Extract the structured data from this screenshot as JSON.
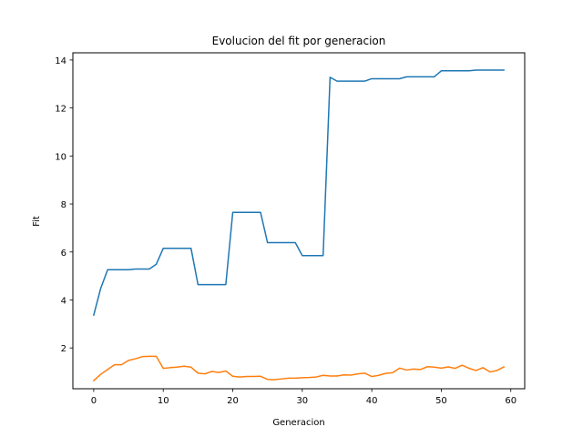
{
  "chart_data": {
    "type": "line",
    "title": "Evolucion del fit por generacion",
    "xlabel": "Generacion",
    "ylabel": "Fit",
    "xlim": [
      -3,
      62.0
    ],
    "ylim": [
      0.3,
      14.3
    ],
    "xticks": [
      0,
      10,
      20,
      30,
      40,
      50,
      60
    ],
    "yticks": [
      2,
      4,
      6,
      8,
      10,
      12,
      14
    ],
    "grid": false,
    "legend": "none",
    "series": [
      {
        "color": "#1f77b4",
        "x": [
          0,
          1,
          2,
          3,
          4,
          5,
          6,
          7,
          8,
          9,
          10,
          11,
          12,
          13,
          14,
          15,
          16,
          17,
          18,
          19,
          20,
          21,
          22,
          23,
          24,
          25,
          26,
          27,
          28,
          29,
          30,
          31,
          32,
          33,
          34,
          35,
          36,
          37,
          38,
          39,
          40,
          41,
          42,
          43,
          44,
          45,
          46,
          47,
          48,
          49,
          50,
          51,
          52,
          53,
          54,
          55,
          56,
          57,
          58,
          59
        ],
        "values": [
          3.37,
          4.48,
          5.26,
          5.26,
          5.26,
          5.26,
          5.29,
          5.29,
          5.29,
          5.49,
          6.15,
          6.15,
          6.15,
          6.15,
          6.15,
          4.64,
          4.64,
          4.64,
          4.64,
          4.64,
          7.65,
          7.65,
          7.65,
          7.65,
          7.65,
          6.39,
          6.39,
          6.39,
          6.39,
          6.39,
          5.85,
          5.85,
          5.85,
          5.85,
          13.28,
          13.12,
          13.12,
          13.12,
          13.12,
          13.12,
          13.22,
          13.22,
          13.22,
          13.22,
          13.22,
          13.3,
          13.3,
          13.3,
          13.3,
          13.3,
          13.55,
          13.55,
          13.55,
          13.55,
          13.55,
          13.58,
          13.58,
          13.58,
          13.58,
          13.58
        ]
      },
      {
        "color": "#ff7f0e",
        "x": [
          0,
          1,
          2,
          3,
          4,
          5,
          6,
          7,
          8,
          9,
          10,
          11,
          12,
          13,
          14,
          15,
          16,
          17,
          18,
          19,
          20,
          21,
          22,
          23,
          24,
          25,
          26,
          27,
          28,
          29,
          30,
          31,
          32,
          33,
          34,
          35,
          36,
          37,
          38,
          39,
          40,
          41,
          42,
          43,
          44,
          45,
          46,
          47,
          48,
          49,
          50,
          51,
          52,
          53,
          54,
          55,
          56,
          57,
          58,
          59
        ],
        "values": [
          0.64,
          0.9,
          1.1,
          1.3,
          1.3,
          1.48,
          1.55,
          1.64,
          1.65,
          1.65,
          1.15,
          1.18,
          1.2,
          1.24,
          1.2,
          0.95,
          0.92,
          1.02,
          0.98,
          1.04,
          0.82,
          0.79,
          0.81,
          0.81,
          0.82,
          0.69,
          0.68,
          0.71,
          0.74,
          0.74,
          0.76,
          0.77,
          0.79,
          0.86,
          0.83,
          0.83,
          0.88,
          0.87,
          0.92,
          0.95,
          0.81,
          0.86,
          0.94,
          0.97,
          1.16,
          1.08,
          1.12,
          1.1,
          1.22,
          1.2,
          1.16,
          1.21,
          1.15,
          1.28,
          1.15,
          1.06,
          1.18,
          1.0,
          1.06,
          1.21
        ]
      }
    ]
  }
}
